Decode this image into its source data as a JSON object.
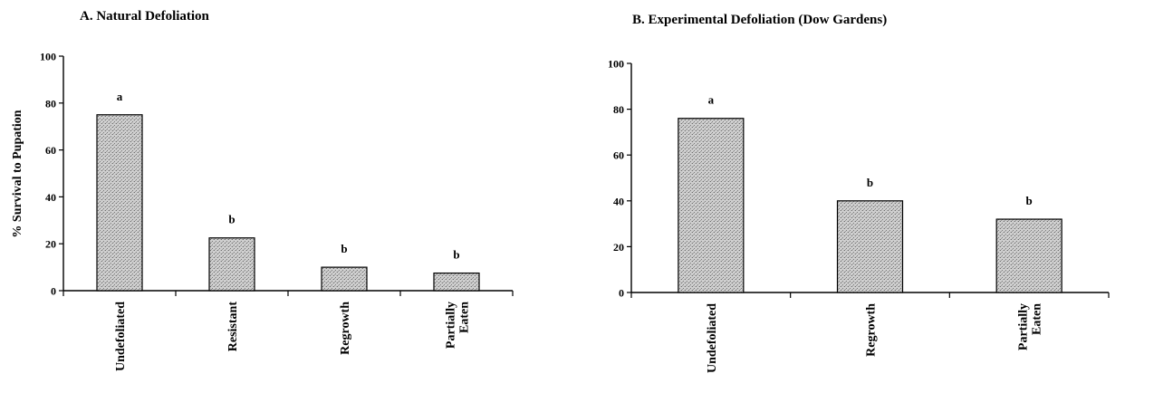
{
  "chart_data": [
    {
      "type": "bar",
      "title": "A. Natural Defoliation",
      "ylabel": "% Survival to Pupation",
      "xlabel": "",
      "ylim": [
        0,
        100
      ],
      "yticks": [
        0,
        20,
        40,
        60,
        80,
        100
      ],
      "categories": [
        [
          "Undefoliated"
        ],
        [
          "Resistant"
        ],
        [
          "Regrowth"
        ],
        [
          "Partially",
          "Eaten"
        ]
      ],
      "values": [
        75,
        22.5,
        10,
        7.5
      ],
      "significance_labels": [
        "a",
        "b",
        "b",
        "b"
      ],
      "bar_fill": "stippled gray"
    },
    {
      "type": "bar",
      "title": "B. Experimental Defoliation (Dow Gardens)",
      "ylabel": "",
      "xlabel": "",
      "ylim": [
        0,
        100
      ],
      "yticks": [
        0,
        20,
        40,
        60,
        80,
        100
      ],
      "categories": [
        [
          "Undefoliated"
        ],
        [
          "Regrowth"
        ],
        [
          "Partially",
          "Eaten"
        ]
      ],
      "values": [
        76,
        40,
        32
      ],
      "significance_labels": [
        "a",
        "b",
        "b"
      ],
      "bar_fill": "stippled gray"
    }
  ]
}
